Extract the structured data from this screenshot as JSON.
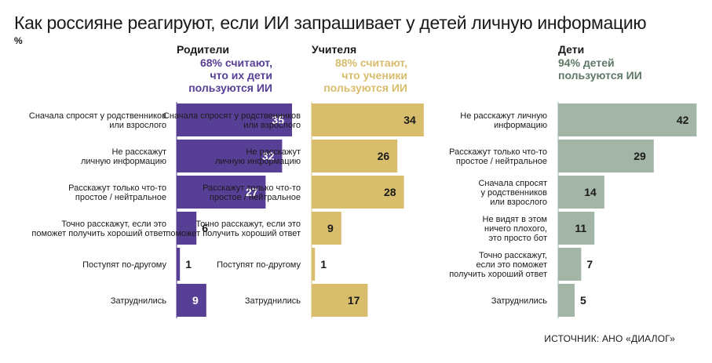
{
  "title": "Как россияне реагируют, если ИИ запрашивает у детей личную информацию",
  "unit": "%",
  "source": "ИСТОЧНИК: АНО «ДИАЛОГ»",
  "chart_data": [
    {
      "type": "bar",
      "orientation": "horizontal",
      "name": "Родители",
      "subtitle_lines": [
        "68% считают,",
        "что их дети",
        "пользуются ИИ"
      ],
      "color": "#573f96",
      "value_color": "#ffffff",
      "categories": [
        [
          "Сначала спросят у родственников",
          "или взрослого"
        ],
        [
          "Не расскажут",
          "личную информацию"
        ],
        [
          "Расскажут только что-то",
          "простое / нейтральное"
        ],
        [
          "Точно расскажут, если это",
          "поможет получить хороший ответ"
        ],
        [
          "Поступят по-другому"
        ],
        [
          "Затруднились"
        ]
      ],
      "values": [
        35,
        32,
        27,
        6,
        1,
        9
      ]
    },
    {
      "type": "bar",
      "orientation": "horizontal",
      "name": "Учителя",
      "subtitle_lines": [
        "88% считают,",
        "что ученики",
        "пользуются ИИ"
      ],
      "color": "#d8bd6c",
      "value_color": "#1a1a1a",
      "categories": [
        [
          "Сначала спросят у родственников",
          "или взрослого"
        ],
        [
          "Не расскажут",
          "личную информацию"
        ],
        [
          "Расскажут только что-то",
          "простое / нейтральное"
        ],
        [
          "Точно расскажут, если это",
          "поможет получить хороший ответ"
        ],
        [
          "Поступят по-другому"
        ],
        [
          "Затруднились"
        ]
      ],
      "values": [
        34,
        26,
        28,
        9,
        1,
        17
      ]
    },
    {
      "type": "bar",
      "orientation": "horizontal",
      "name": "Дети",
      "subtitle_lines": [
        "94% детей",
        "пользуются ИИ"
      ],
      "color": "#a3b5a6",
      "value_color": "#1a1a1a",
      "categories": [
        [
          "Не расскажут личную",
          "информацию"
        ],
        [
          "Расскажут только что-то",
          "простое / нейтральное"
        ],
        [
          "Сначала спросят",
          "у родственников",
          "или взрослого"
        ],
        [
          "Не видят в этом",
          "ничего плохого,",
          "это просто бот"
        ],
        [
          "Точно расскажут,",
          "если это поможет",
          "получить хороший ответ"
        ],
        [
          "Затруднились"
        ]
      ],
      "values": [
        42,
        29,
        14,
        11,
        7,
        5
      ]
    }
  ],
  "colors": {
    "parents": "#573f96",
    "teachers": "#d8bd6c",
    "children": "#a3b5a6",
    "children_subtitle": "#5e7867"
  }
}
